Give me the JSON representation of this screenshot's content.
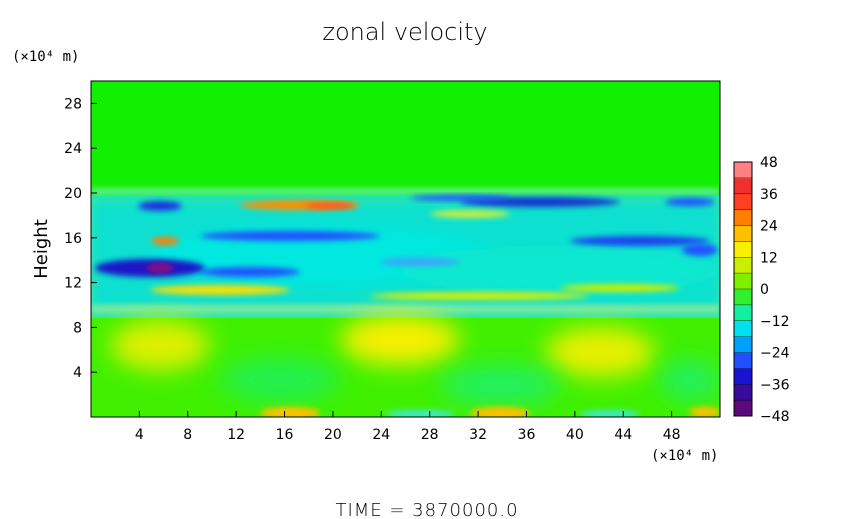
{
  "chart_data": {
    "type": "heatmap",
    "title": "zonal velocity",
    "ylabel": "Height",
    "x_unit_label": "(×10⁴ m)",
    "y_unit_label": "(×10⁴ m)",
    "xlim": [
      0,
      52
    ],
    "ylim": [
      0,
      30
    ],
    "x_ticks": [
      4,
      8,
      12,
      16,
      20,
      24,
      28,
      32,
      36,
      40,
      44,
      48
    ],
    "y_ticks": [
      4,
      8,
      12,
      16,
      20,
      24,
      28
    ],
    "colorbar": {
      "ticks": [
        48,
        36,
        24,
        12,
        0,
        -12,
        -24,
        -36,
        -48
      ],
      "range": [
        -48,
        48
      ],
      "colors": [
        "#5a0a7a",
        "#3a0a9a",
        "#1a14d0",
        "#2050ff",
        "#00a0ff",
        "#00e0f0",
        "#10f0a0",
        "#30f030",
        "#80f000",
        "#c8f000",
        "#f8f000",
        "#ffc000",
        "#ff8000",
        "#ff4020",
        "#f03030",
        "#ff8080"
      ]
    },
    "field_sample": {
      "note_rows": "rows ordered top (y=30) to bottom (y=0), columns x=0..52",
      "rows": [
        [
          0,
          0,
          0,
          0,
          0,
          0,
          0,
          0,
          0,
          0,
          0,
          0,
          0,
          0,
          0,
          0,
          0,
          0,
          0,
          0,
          0,
          0,
          0,
          0,
          0,
          0,
          0,
          0,
          0,
          0,
          0,
          0,
          0,
          0,
          0,
          0,
          0,
          0,
          0,
          0,
          0,
          0,
          0,
          0,
          0,
          0,
          0,
          0,
          0,
          0,
          0,
          0,
          0
        ],
        [
          0,
          0,
          0,
          0,
          0,
          0,
          0,
          0,
          0,
          0,
          0,
          0,
          0,
          0,
          0,
          0,
          0,
          0,
          0,
          0,
          0,
          0,
          0,
          0,
          0,
          0,
          0,
          0,
          0,
          0,
          0,
          0,
          0,
          0,
          0,
          0,
          0,
          0,
          0,
          0,
          0,
          0,
          0,
          0,
          0,
          0,
          0,
          0,
          0,
          0,
          0,
          0,
          0
        ]
      ]
    }
  },
  "footer": {
    "time_label": "TIME  =  3870000.0"
  }
}
